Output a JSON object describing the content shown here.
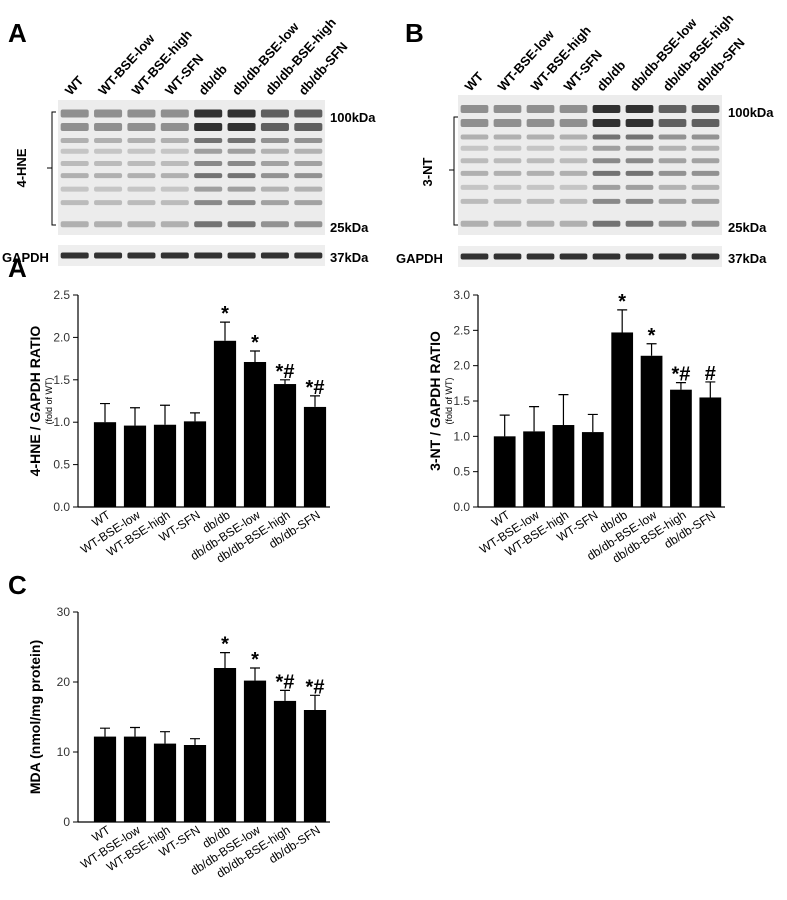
{
  "chart_data": [
    {
      "type": "bar",
      "panel": "A",
      "ylabel": "4-HNE / GAPDH RATIO",
      "ylabel_note": "(fold of WT)",
      "categories": [
        "WT",
        "WT-BSE-low",
        "WT-BSE-high",
        "WT-SFN",
        "db/db",
        "db/db-BSE-low",
        "db/db-BSE-high",
        "db/db-SFN"
      ],
      "values": [
        1.0,
        0.96,
        0.97,
        1.01,
        1.96,
        1.71,
        1.45,
        1.18
      ],
      "errors": [
        0.22,
        0.21,
        0.23,
        0.1,
        0.22,
        0.13,
        0.05,
        0.13
      ],
      "annotations": [
        null,
        null,
        null,
        null,
        "*",
        "*",
        "*#",
        "*#"
      ],
      "color": "#000000",
      "ylim": [
        0,
        2.5
      ],
      "yticks": [
        {
          "value": 0,
          "label": "0.0"
        },
        {
          "value": 0.5,
          "label": "0.5"
        },
        {
          "value": 1,
          "label": "1.0"
        },
        {
          "value": 1.5,
          "label": "1.5"
        },
        {
          "value": 2,
          "label": "2.0"
        },
        {
          "value": 2.5,
          "label": "2.5"
        }
      ],
      "grid": false
    },
    {
      "type": "bar",
      "ylabel": "3-NT / GAPDH RATIO",
      "ylabel_note": "(fold of WT)",
      "categories": [
        "WT",
        "WT-BSE-low",
        "WT-BSE-high",
        "WT-SFN",
        "db/db",
        "db/db-BSE-low",
        "db/db-BSE-high",
        "db/db-SFN"
      ],
      "values": [
        1.0,
        1.07,
        1.16,
        1.06,
        2.47,
        2.14,
        1.66,
        1.55
      ],
      "errors": [
        0.3,
        0.35,
        0.43,
        0.25,
        0.32,
        0.17,
        0.1,
        0.22
      ],
      "annotations": [
        null,
        null,
        null,
        null,
        "*",
        "*",
        "*#",
        "#"
      ],
      "color": "#000000",
      "ylim": [
        0,
        3
      ],
      "yticks": [
        {
          "value": 0,
          "label": "0.0"
        },
        {
          "value": 0.5,
          "label": "0.5"
        },
        {
          "value": 1,
          "label": "1.0"
        },
        {
          "value": 1.5,
          "label": "1.5"
        },
        {
          "value": 2,
          "label": "2.0"
        },
        {
          "value": 2.5,
          "label": "2.5"
        },
        {
          "value": 3,
          "label": "3.0"
        }
      ],
      "grid": false
    },
    {
      "type": "bar",
      "panel": "C",
      "ylabel": "MDA (nmol/mg protein)",
      "categories": [
        "WT",
        "WT-BSE-low",
        "WT-BSE-high",
        "WT-SFN",
        "db/db",
        "db/db-BSE-low",
        "db/db-BSE-high",
        "db/db-SFN"
      ],
      "values": [
        12.2,
        12.2,
        11.2,
        11.0,
        22.0,
        20.2,
        17.3,
        16.0
      ],
      "errors": [
        1.2,
        1.3,
        1.7,
        0.9,
        2.2,
        1.8,
        1.5,
        2.1
      ],
      "annotations": [
        null,
        null,
        null,
        null,
        "*",
        "*",
        "*#",
        "*#"
      ],
      "color": "#000000",
      "ylim": [
        0,
        30
      ],
      "yticks": [
        0,
        10,
        20,
        30
      ],
      "grid": false
    }
  ],
  "blots": [
    {
      "panel": "A",
      "protein": "4-HNE",
      "lanes": [
        "WT",
        "WT-BSE-low",
        "WT-BSE-high",
        "WT-SFN",
        "db/db",
        "db/db-BSE-low",
        "db/db-BSE-high",
        "db/db-SFN"
      ],
      "markers": [
        "100kDa",
        "25kDa"
      ],
      "loading": "GAPDH",
      "loading_marker": "37kDa"
    },
    {
      "panel": "B",
      "protein": "3-NT",
      "lanes": [
        "WT",
        "WT-BSE-low",
        "WT-BSE-high",
        "WT-SFN",
        "db/db",
        "db/db-BSE-low",
        "db/db-BSE-high",
        "db/db-SFN"
      ],
      "markers": [
        "100kDa",
        "25kDa"
      ],
      "loading": "GAPDH",
      "loading_marker": "37kDa"
    }
  ]
}
